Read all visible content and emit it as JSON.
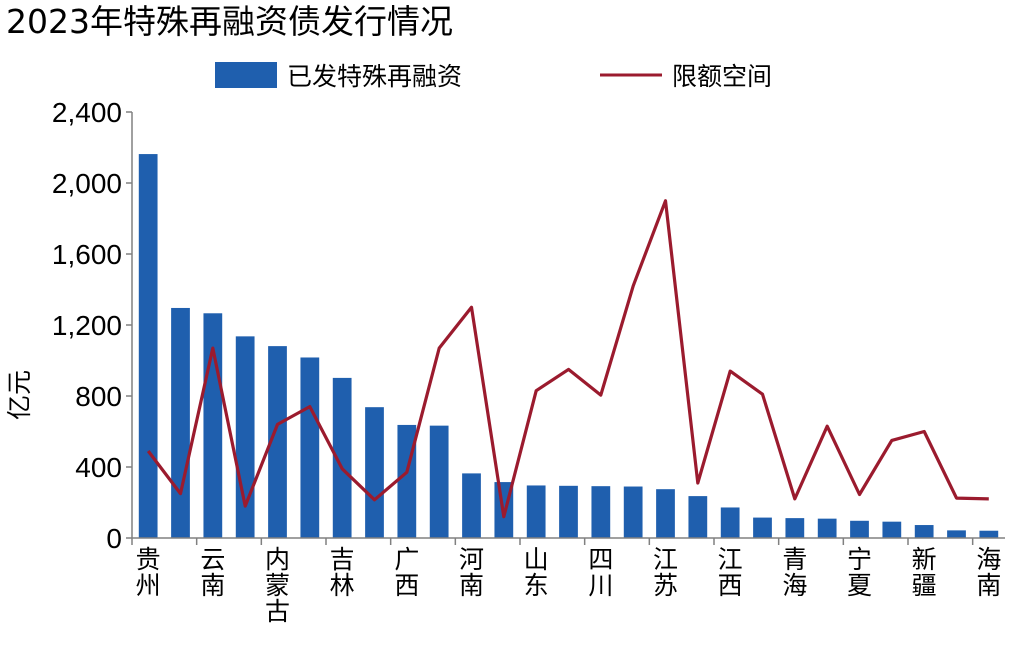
{
  "chart_data": {
    "type": "bar",
    "title": "2023年特殊再融资债发行情况",
    "ylabel": "亿元",
    "xlabel": "",
    "ylim": [
      0,
      2400
    ],
    "yticks": [
      0,
      400,
      800,
      1200,
      1600,
      2000,
      2400
    ],
    "ytick_labels": [
      "0",
      "400",
      "800",
      "1,200",
      "1,600",
      "2,000",
      "2,400"
    ],
    "grid": false,
    "legend_position": "top",
    "categories": [
      "贵州",
      "",
      "云南",
      "",
      "内蒙古",
      "",
      "吉林",
      "",
      "广西",
      "",
      "河南",
      "",
      "山东",
      "",
      "四川",
      "",
      "江苏",
      "",
      "江西",
      "",
      "青海",
      "",
      "宁夏",
      "",
      "新疆",
      "",
      "海南"
    ],
    "series": [
      {
        "name": "已发特殊再融资",
        "type": "bar",
        "color": "#1f5fae",
        "values": [
          2163,
          1296,
          1266,
          1136,
          1081,
          1017,
          902,
          737,
          637,
          633,
          364,
          315,
          296,
          294,
          292,
          290,
          275,
          236,
          172,
          115,
          112,
          109,
          97,
          92,
          73,
          43,
          41
        ]
      },
      {
        "name": "限额空间",
        "type": "line",
        "color": "#9b1b2e",
        "values": [
          490,
          250,
          1070,
          180,
          640,
          740,
          390,
          215,
          370,
          1070,
          1300,
          120,
          830,
          950,
          805,
          1420,
          1900,
          310,
          940,
          810,
          220,
          630,
          245,
          550,
          600,
          225,
          220
        ]
      }
    ]
  }
}
